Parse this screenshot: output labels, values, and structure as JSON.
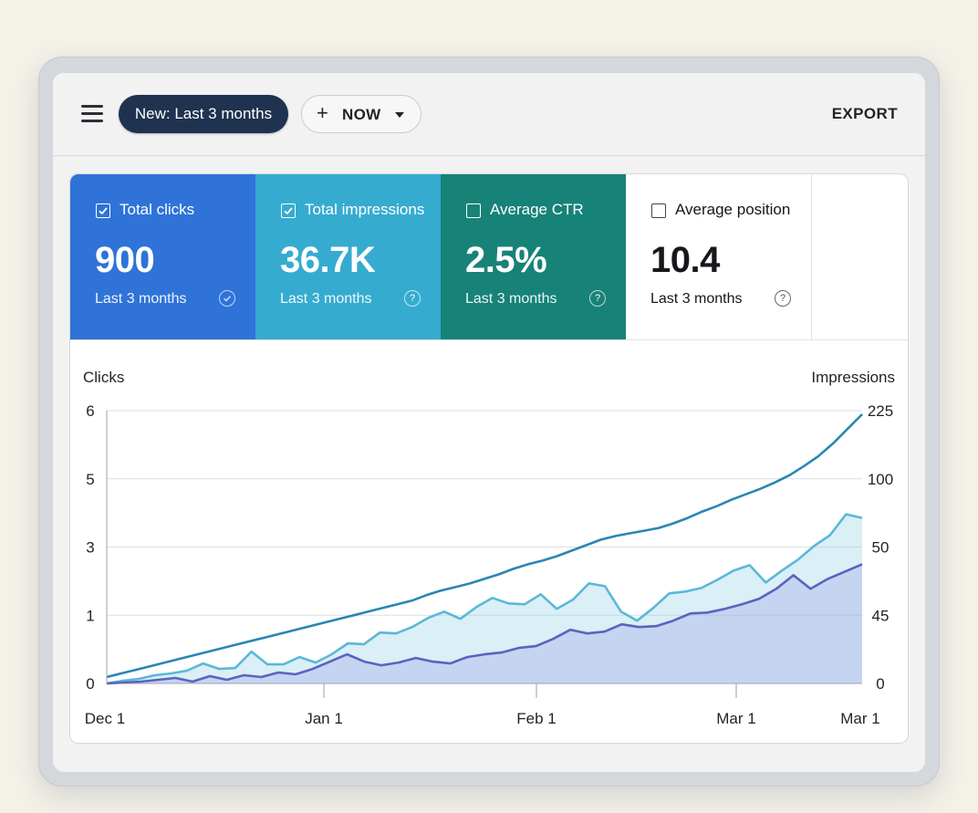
{
  "toolbar": {
    "menu_icon": "hamburger-menu-icon",
    "date_filter_label": "New: Last 3 months",
    "add_filter_label": "NOW",
    "export_label": "EXPORT"
  },
  "metrics": [
    {
      "label": "Total clicks",
      "value": "900",
      "period": "Last 3 months",
      "checked": true,
      "color": "#2f73d8"
    },
    {
      "label": "Total impressions",
      "value": "36.7K",
      "period": "Last 3 months",
      "checked": true,
      "color": "#36abd0"
    },
    {
      "label": "Average CTR",
      "value": "2.5%",
      "period": "Last 3 months",
      "checked": false,
      "color": "#178278"
    },
    {
      "label": "Average position",
      "value": "10.4",
      "period": "Last 3 months",
      "checked": false,
      "color": "#ffffff"
    }
  ],
  "chart_data": {
    "type": "area",
    "ylabel": "Clicks",
    "y2label": "Impressions",
    "left_ticks": [
      "6",
      "5",
      "3",
      "1",
      "0"
    ],
    "right_ticks": [
      "225",
      "100",
      "50",
      "45",
      "0"
    ],
    "x_ticks": [
      "Dec 1",
      "Jan 1",
      "Feb 1",
      "Mar 1",
      "Mar 1"
    ],
    "grid": true,
    "series": [
      {
        "color": "#2a86b3",
        "values": [
          0.35,
          0.55,
          0.75,
          0.95,
          1.15,
          1.35,
          1.55,
          1.75,
          1.95,
          2.15,
          2.35,
          2.55,
          2.75,
          2.95,
          3.15,
          3.35,
          3.55,
          3.75,
          3.95,
          4.15,
          4.35,
          4.55,
          4.85,
          5.1,
          5.3,
          5.5,
          5.75,
          6.0,
          6.3,
          6.55,
          6.75,
          7.0,
          7.3,
          7.6,
          7.9,
          8.1,
          8.25,
          8.4,
          8.55,
          8.8,
          9.1,
          9.45,
          9.75,
          10.1,
          10.4,
          10.7,
          11.05,
          11.45,
          11.95,
          12.5,
          13.2,
          14.0,
          14.8
        ]
      },
      {
        "color": "#5ab8d8",
        "values": [
          0.0,
          0.15,
          0.25,
          0.45,
          0.55,
          0.7,
          1.1,
          0.8,
          0.85,
          1.75,
          1.05,
          1.05,
          1.45,
          1.15,
          1.6,
          2.2,
          2.15,
          2.8,
          2.75,
          3.1,
          3.6,
          3.95,
          3.55,
          4.2,
          4.7,
          4.4,
          4.35,
          4.9,
          4.1,
          4.6,
          5.5,
          5.35,
          3.95,
          3.45,
          4.15,
          4.95,
          5.05,
          5.25,
          5.7,
          6.2,
          6.5,
          5.55,
          6.2,
          6.8,
          7.55,
          8.15,
          9.3,
          9.1
        ]
      },
      {
        "color": "#5a63c0",
        "values": [
          0.0,
          0.05,
          0.1,
          0.2,
          0.3,
          0.1,
          0.4,
          0.2,
          0.45,
          0.35,
          0.6,
          0.5,
          0.8,
          1.2,
          1.6,
          1.2,
          1.0,
          1.15,
          1.4,
          1.2,
          1.1,
          1.45,
          1.6,
          1.7,
          1.95,
          2.05,
          2.45,
          2.95,
          2.75,
          2.85,
          3.25,
          3.1,
          3.15,
          3.45,
          3.85,
          3.9,
          4.1,
          4.35,
          4.65,
          5.2,
          5.95,
          5.2,
          5.75,
          6.15,
          6.55
        ]
      }
    ]
  }
}
